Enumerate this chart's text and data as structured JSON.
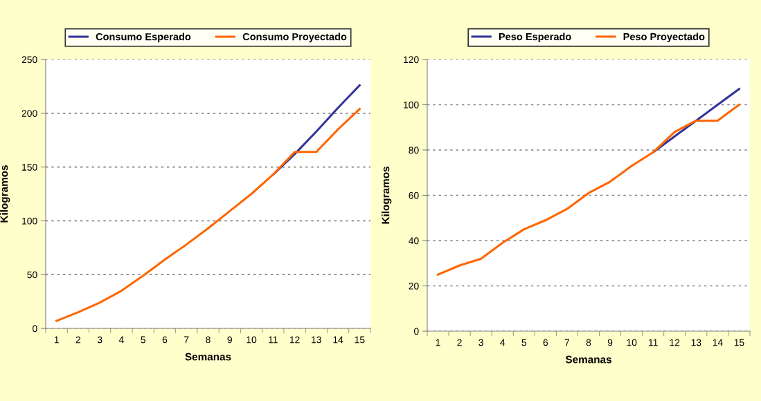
{
  "chart_data": [
    {
      "type": "line",
      "xlabel": "Semanas",
      "ylabel": "Kilogramos",
      "categories": [
        "1",
        "2",
        "3",
        "4",
        "5",
        "6",
        "7",
        "8",
        "9",
        "10",
        "11",
        "12",
        "13",
        "14",
        "15"
      ],
      "series": [
        {
          "name": "Consumo Esperado",
          "color": "#333399",
          "values": [
            null,
            null,
            null,
            null,
            null,
            null,
            null,
            null,
            null,
            null,
            143,
            162,
            183,
            205,
            226
          ]
        },
        {
          "name": "Consumo Proyectado",
          "color": "#ff6600",
          "values": [
            7,
            15,
            24,
            35,
            49,
            64,
            78,
            93,
            109,
            125,
            143,
            164,
            164,
            185,
            204
          ]
        }
      ],
      "ylim": [
        0,
        250
      ],
      "yticks": [
        0,
        50,
        100,
        150,
        200,
        250
      ],
      "grid": "y",
      "legend": "top",
      "marker": "none",
      "line_style": "solid"
    },
    {
      "type": "line",
      "xlabel": "Semanas",
      "ylabel": "Kilogramos",
      "categories": [
        "1",
        "2",
        "3",
        "4",
        "5",
        "6",
        "7",
        "8",
        "9",
        "10",
        "11",
        "12",
        "13",
        "14",
        "15"
      ],
      "series": [
        {
          "name": "Peso Esperado",
          "color": "#333399",
          "values": [
            null,
            null,
            null,
            null,
            null,
            null,
            null,
            null,
            null,
            null,
            79,
            86,
            93,
            100,
            107
          ]
        },
        {
          "name": "Peso Proyectado",
          "color": "#ff6600",
          "values": [
            25,
            29,
            32,
            39,
            45,
            49,
            54,
            61,
            66,
            73,
            79,
            88,
            93,
            93,
            100
          ]
        }
      ],
      "ylim": [
        0,
        120
      ],
      "yticks": [
        0,
        20,
        40,
        60,
        80,
        100,
        120
      ],
      "grid": "y",
      "legend": "top",
      "marker": "none",
      "line_style": "solid"
    }
  ]
}
